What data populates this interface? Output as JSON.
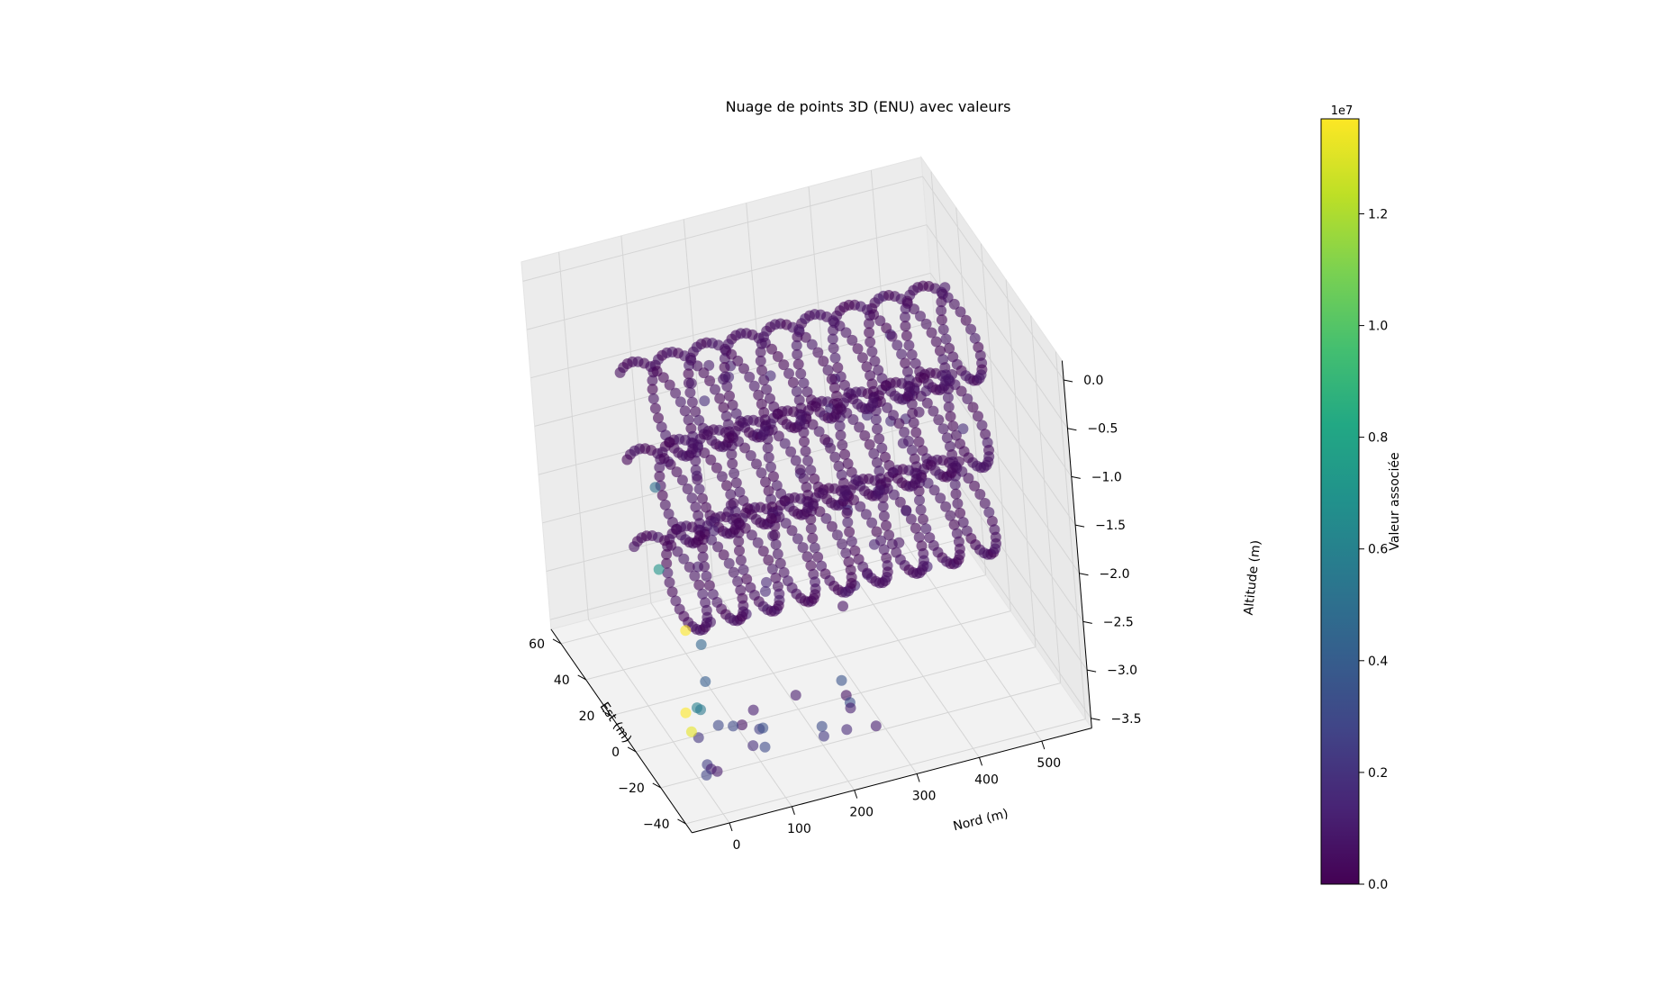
{
  "chart_data": {
    "type": "scatter",
    "projection": "3d",
    "title": "Nuage de points 3D (ENU) avec valeurs",
    "xlabel": "Nord (m)",
    "ylabel": "Est (m)",
    "zlabel": "Altitude (m)",
    "xlim": [
      -60,
      580
    ],
    "ylim": [
      -45,
      68
    ],
    "zlim": [
      -3.6,
      0.2
    ],
    "x_ticks": [
      "0",
      "100",
      "200",
      "300",
      "400",
      "500"
    ],
    "y_ticks": [
      "−40",
      "−20",
      "0",
      "20",
      "40",
      "60"
    ],
    "z_ticks": [
      "0.0",
      "−0.5",
      "−1.0",
      "−1.5",
      "−2.0",
      "−2.5",
      "−3.0",
      "−3.5"
    ],
    "grid": true,
    "colormap": "viridis",
    "colorbar": {
      "label": "Valeur associée",
      "offset_label": "1e7",
      "range": [
        0.0,
        1.37
      ],
      "ticks": [
        "0.0",
        "0.2",
        "0.4",
        "0.6",
        "0.8",
        "1.0",
        "1.2"
      ]
    },
    "series": [
      {
        "pattern": "helical sweep lines, 3 vertical levels, ~9 loops each",
        "z_levels": [
          -0.3,
          -1.2,
          -2.1
        ],
        "value": 0.02
      },
      {
        "pattern": "lower scattered points",
        "z": -3.3,
        "value_range": [
          0.0,
          0.35
        ]
      },
      {
        "pattern": "high-value outliers near start",
        "nord_approx": -10,
        "est_approx": -25,
        "value_range": [
          0.45,
          1.37
        ]
      }
    ]
  },
  "colors": {
    "pane": "#f2f2f2",
    "grid": "#d5d5d5",
    "point_low": "#440154",
    "point_high": "#fde725"
  }
}
